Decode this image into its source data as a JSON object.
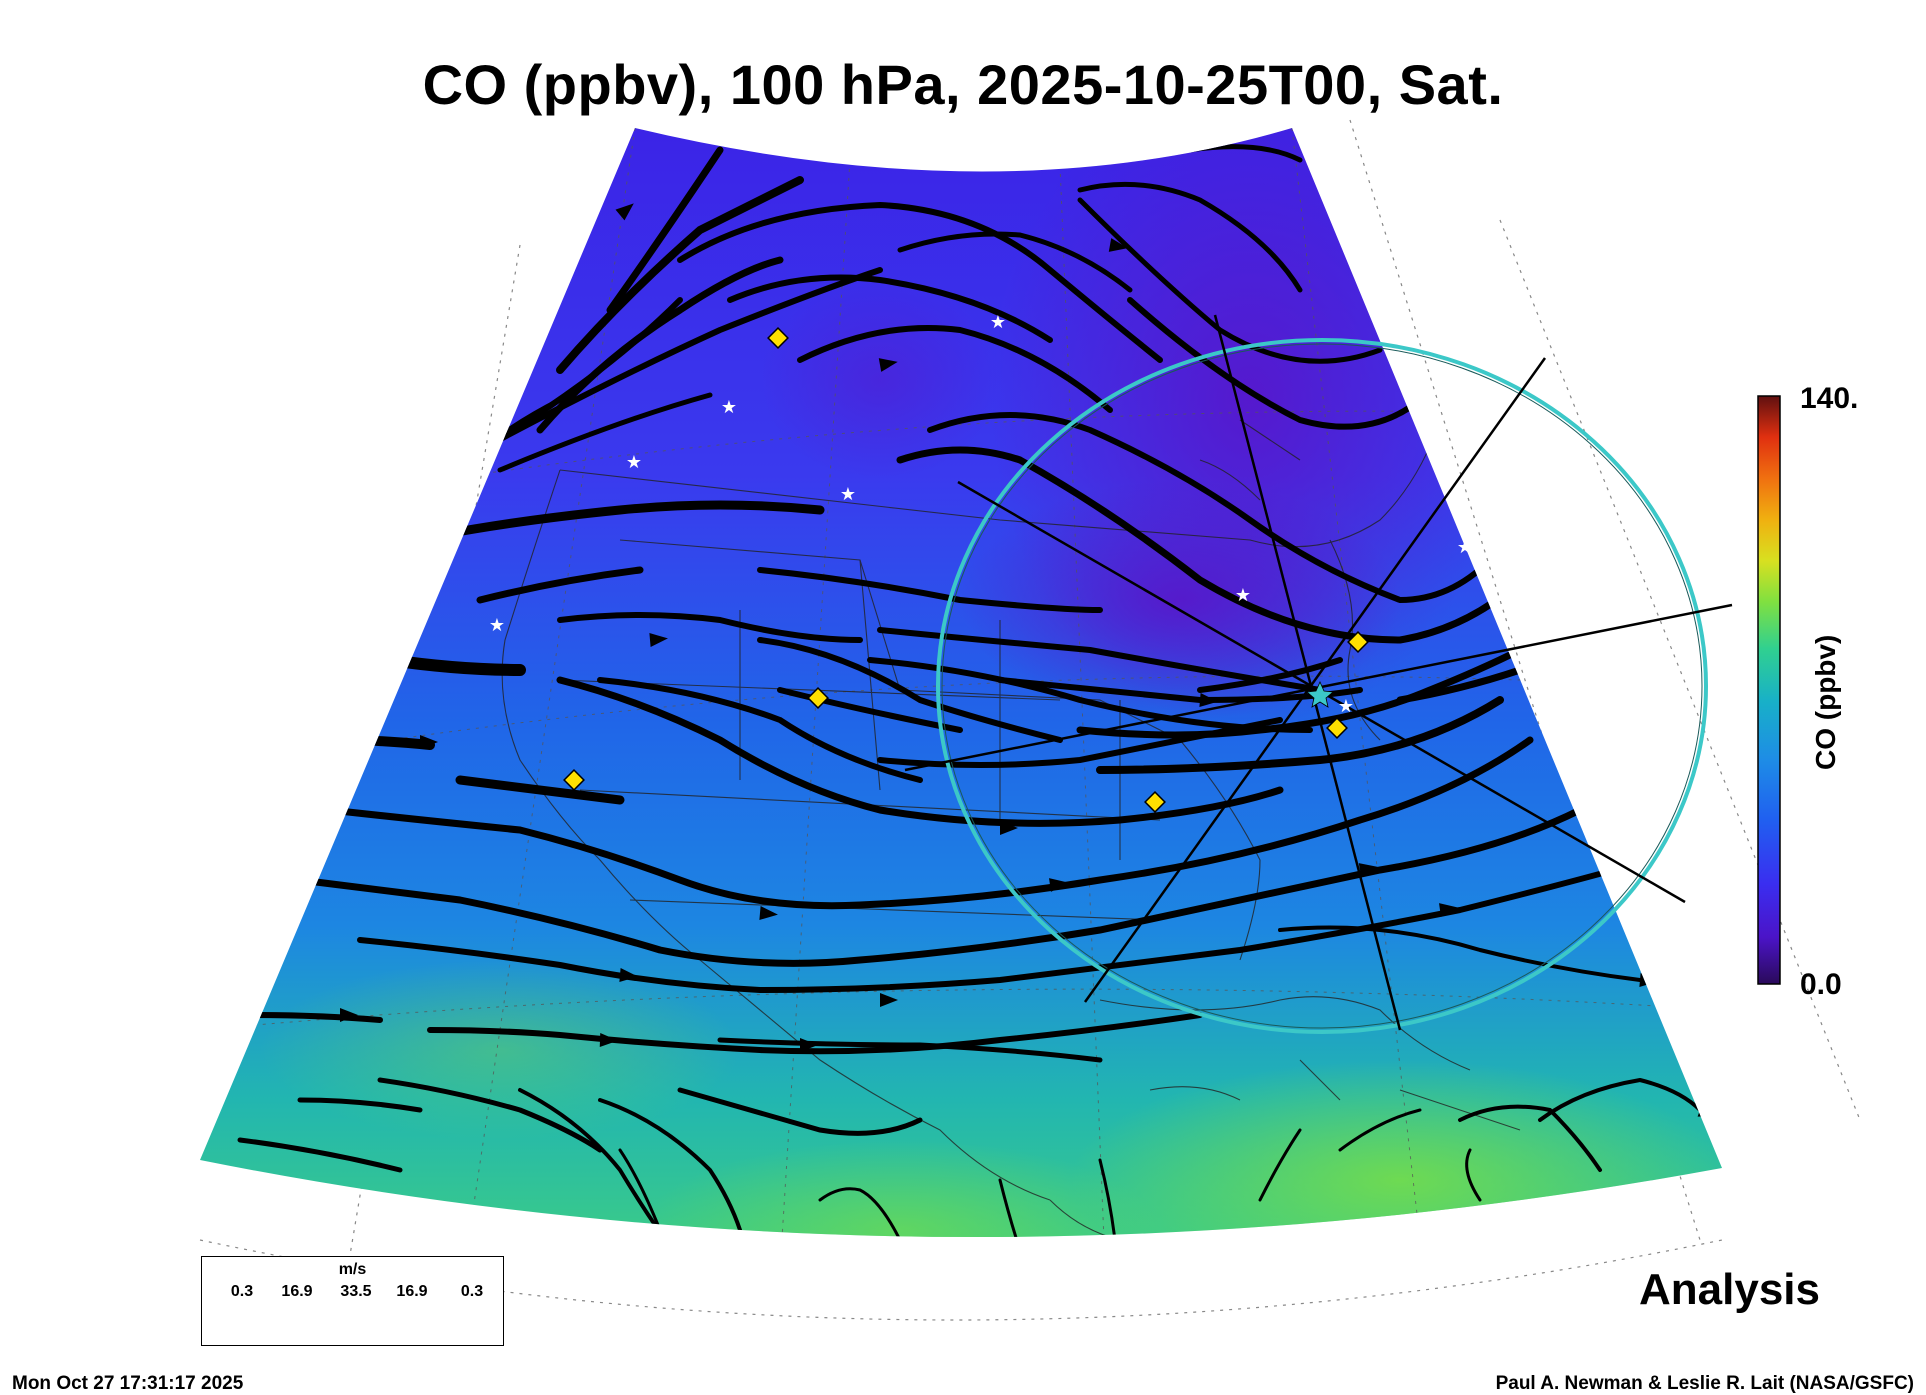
{
  "title": "CO (ppbv), 100 hPa, 2025-10-25T00, Sat.",
  "colorbar": {
    "max_label": "140.",
    "min_label": "0.0",
    "title": "CO (ppbv)",
    "colors": [
      "#2a0a5a",
      "#4b14c8",
      "#3a2ef0",
      "#2060f0",
      "#1e8ce6",
      "#18b0c8",
      "#30d090",
      "#80e040",
      "#d8e020",
      "#f0b010",
      "#f07010",
      "#e03010",
      "#a01010",
      "#601010"
    ]
  },
  "wind_legend": {
    "unit": "m/s",
    "ticks": [
      "0.3",
      "16.9",
      "33.5",
      "16.9",
      "0.3"
    ]
  },
  "analysis_label": "Analysis",
  "timestamp": "Mon Oct 27 17:31:17 2025",
  "credit": "Paul A. Newman & Leslie R. Lait (NASA/GSFC)",
  "colors": {
    "co_low": "#4a1ed8",
    "co_mid": "#1e78e6",
    "co_high": "#40d878",
    "streamline": "#000000",
    "ring": "#3cc8c8",
    "marker_diamond": "#ffe000"
  }
}
